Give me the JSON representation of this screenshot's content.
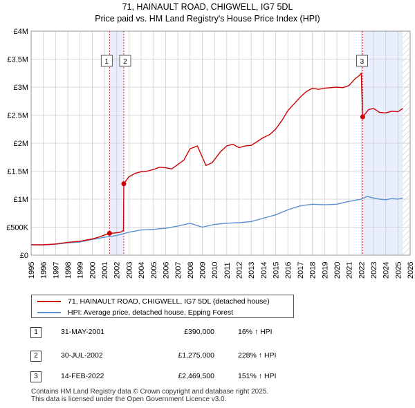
{
  "chart_data": {
    "type": "line",
    "title_line1": "71, HAINAULT ROAD, CHIGWELL, IG7 5DL",
    "title_line2": "Price paid vs. HM Land Registry's House Price Index (HPI)",
    "xlim": [
      1995,
      2026
    ],
    "ylim": [
      0,
      4000000
    ],
    "x_ticks": [
      "1995",
      "1996",
      "1997",
      "1998",
      "1999",
      "2000",
      "2001",
      "2002",
      "2003",
      "2004",
      "2005",
      "2006",
      "2007",
      "2008",
      "2009",
      "2010",
      "2011",
      "2012",
      "2013",
      "2014",
      "2015",
      "2016",
      "2017",
      "2018",
      "2019",
      "2020",
      "2021",
      "2022",
      "2023",
      "2024",
      "2025",
      "2026"
    ],
    "y_ticks": [
      {
        "value": 0,
        "label": "£0"
      },
      {
        "value": 500000,
        "label": "£500K"
      },
      {
        "value": 1000000,
        "label": "£1M"
      },
      {
        "value": 1500000,
        "label": "£1.5M"
      },
      {
        "value": 2000000,
        "label": "£2M"
      },
      {
        "value": 2500000,
        "label": "£2.5M"
      },
      {
        "value": 3000000,
        "label": "£3M"
      },
      {
        "value": 3500000,
        "label": "£3.5M"
      },
      {
        "value": 4000000,
        "label": "£4M"
      }
    ],
    "grid": true,
    "series": [
      {
        "name": "71, HAINAULT ROAD, CHIGWELL, IG7 5DL (detached house)",
        "color": "#cc0000",
        "points": [
          [
            1995.0,
            185000
          ],
          [
            1996.0,
            185000
          ],
          [
            1997.0,
            200000
          ],
          [
            1998.0,
            230000
          ],
          [
            1999.0,
            250000
          ],
          [
            2000.0,
            290000
          ],
          [
            2000.5,
            320000
          ],
          [
            2001.0,
            360000
          ],
          [
            2001.41,
            390000
          ],
          [
            2001.8,
            395000
          ],
          [
            2002.3,
            410000
          ],
          [
            2002.55,
            440000
          ],
          [
            2002.58,
            1275000
          ],
          [
            2003.0,
            1400000
          ],
          [
            2003.5,
            1460000
          ],
          [
            2004.0,
            1490000
          ],
          [
            2004.5,
            1500000
          ],
          [
            2005.0,
            1530000
          ],
          [
            2005.5,
            1570000
          ],
          [
            2006.0,
            1560000
          ],
          [
            2006.5,
            1540000
          ],
          [
            2007.0,
            1620000
          ],
          [
            2007.5,
            1700000
          ],
          [
            2008.0,
            1900000
          ],
          [
            2008.6,
            1950000
          ],
          [
            2009.0,
            1750000
          ],
          [
            2009.3,
            1600000
          ],
          [
            2009.8,
            1650000
          ],
          [
            2010.5,
            1850000
          ],
          [
            2011.0,
            1950000
          ],
          [
            2011.5,
            1980000
          ],
          [
            2012.0,
            1920000
          ],
          [
            2012.5,
            1950000
          ],
          [
            2013.0,
            1960000
          ],
          [
            2013.5,
            2030000
          ],
          [
            2014.0,
            2100000
          ],
          [
            2014.5,
            2150000
          ],
          [
            2015.0,
            2250000
          ],
          [
            2015.5,
            2400000
          ],
          [
            2016.0,
            2580000
          ],
          [
            2016.5,
            2700000
          ],
          [
            2017.0,
            2820000
          ],
          [
            2017.5,
            2920000
          ],
          [
            2018.0,
            2980000
          ],
          [
            2018.5,
            2960000
          ],
          [
            2019.0,
            2980000
          ],
          [
            2019.5,
            2990000
          ],
          [
            2020.0,
            3000000
          ],
          [
            2020.5,
            2990000
          ],
          [
            2021.0,
            3030000
          ],
          [
            2021.5,
            3150000
          ],
          [
            2021.8,
            3200000
          ],
          [
            2022.0,
            3250000
          ],
          [
            2022.12,
            2469500
          ],
          [
            2022.6,
            2600000
          ],
          [
            2023.0,
            2620000
          ],
          [
            2023.5,
            2550000
          ],
          [
            2024.0,
            2540000
          ],
          [
            2024.5,
            2570000
          ],
          [
            2025.0,
            2560000
          ],
          [
            2025.4,
            2620000
          ]
        ]
      },
      {
        "name": "HPI: Average price, detached house, Epping Forest",
        "color": "#5b8fd0",
        "points": [
          [
            1995.0,
            185000
          ],
          [
            1996.0,
            183000
          ],
          [
            1997.0,
            195000
          ],
          [
            1998.0,
            220000
          ],
          [
            1999.0,
            235000
          ],
          [
            2000.0,
            280000
          ],
          [
            2001.0,
            320000
          ],
          [
            2002.0,
            350000
          ],
          [
            2003.0,
            410000
          ],
          [
            2004.0,
            450000
          ],
          [
            2005.0,
            460000
          ],
          [
            2006.0,
            480000
          ],
          [
            2007.0,
            520000
          ],
          [
            2008.0,
            570000
          ],
          [
            2009.0,
            500000
          ],
          [
            2010.0,
            550000
          ],
          [
            2011.0,
            570000
          ],
          [
            2012.0,
            580000
          ],
          [
            2013.0,
            600000
          ],
          [
            2014.0,
            660000
          ],
          [
            2015.0,
            720000
          ],
          [
            2016.0,
            810000
          ],
          [
            2017.0,
            880000
          ],
          [
            2018.0,
            910000
          ],
          [
            2019.0,
            900000
          ],
          [
            2020.0,
            910000
          ],
          [
            2021.0,
            960000
          ],
          [
            2022.0,
            1000000
          ],
          [
            2022.5,
            1050000
          ],
          [
            2023.0,
            1020000
          ],
          [
            2023.5,
            1000000
          ],
          [
            2024.0,
            990000
          ],
          [
            2024.5,
            1010000
          ],
          [
            2025.0,
            1000000
          ],
          [
            2025.4,
            1020000
          ]
        ]
      }
    ],
    "sales": [
      {
        "label": "1",
        "year": 2001.41,
        "value": 390000,
        "date": "31-MAY-2001",
        "price": "£390,000",
        "hpi": "16% ↑ HPI"
      },
      {
        "label": "2",
        "year": 2002.58,
        "value": 1275000,
        "date": "30-JUL-2002",
        "price": "£1,275,000",
        "hpi": "228% ↑ HPI"
      },
      {
        "label": "3",
        "year": 2022.12,
        "value": 2469500,
        "date": "14-FEB-2022",
        "price": "£2,469,500",
        "hpi": "151% ↑ HPI"
      }
    ],
    "future_from": 2025.4,
    "colors": {
      "shade": "#e8eefb",
      "grid": "#cccccc",
      "marker": "#cc0000"
    }
  },
  "footer": {
    "line1": "Contains HM Land Registry data © Crown copyright and database right 2025.",
    "line2": "This data is licensed under the Open Government Licence v3.0."
  }
}
